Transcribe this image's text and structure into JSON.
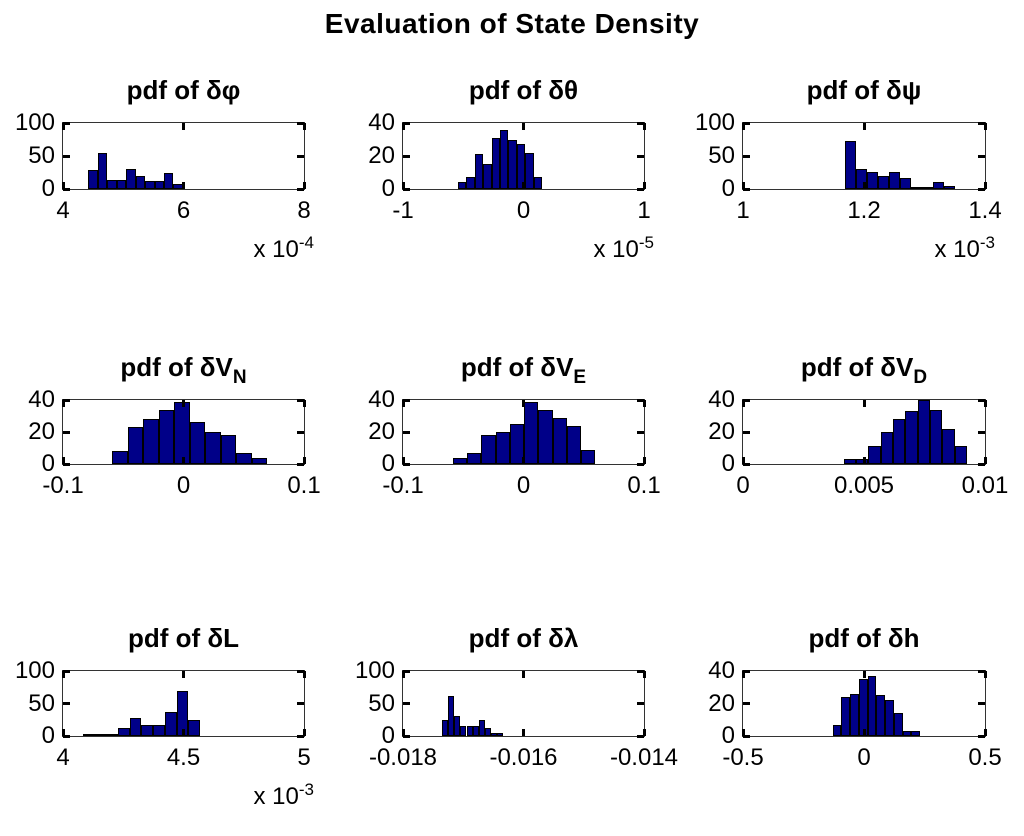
{
  "figure": {
    "title": "Evaluation of State Density"
  },
  "chart_data": [
    {
      "type": "histogram",
      "title": "pdf of δφ",
      "title_sub": "",
      "xlim": [
        4,
        8
      ],
      "ylim": [
        0,
        100
      ],
      "xticks": [
        "4",
        "6",
        "8"
      ],
      "yticks": [
        0,
        50,
        100
      ],
      "x_exp_base": "x 10",
      "x_exp_sup": "-4",
      "bin_start": 4.42,
      "bin_width": 0.157,
      "counts": [
        29,
        54,
        13,
        13,
        30,
        20,
        12,
        12,
        25,
        7
      ]
    },
    {
      "type": "histogram",
      "title": "pdf of δθ",
      "title_sub": "",
      "xlim": [
        -1,
        1
      ],
      "ylim": [
        0,
        40
      ],
      "xticks": [
        "-1",
        "0",
        "1"
      ],
      "yticks": [
        0,
        20,
        40
      ],
      "x_exp_base": "x 10",
      "x_exp_sup": "-5",
      "bin_start": -0.544,
      "bin_width": 0.0697,
      "counts": [
        4,
        7,
        21,
        15,
        31,
        36,
        30,
        27,
        22,
        7
      ]
    },
    {
      "type": "histogram",
      "title": "pdf of δψ",
      "title_sub": "",
      "xlim": [
        1,
        1.4
      ],
      "ylim": [
        0,
        100
      ],
      "xticks": [
        "1",
        "1.2",
        "1.4"
      ],
      "yticks": [
        0,
        50,
        100
      ],
      "x_exp_base": "x 10",
      "x_exp_sup": "-3",
      "bin_start": 1.168,
      "bin_width": 0.0183,
      "counts": [
        73,
        30,
        26,
        20,
        26,
        17,
        3,
        3,
        11,
        4
      ]
    },
    {
      "type": "histogram",
      "title": "pdf of δV",
      "title_sub": "N",
      "xlim": [
        -0.1,
        0.1
      ],
      "ylim": [
        0,
        40
      ],
      "xticks": [
        "-0.1",
        "0",
        "0.1"
      ],
      "yticks": [
        0,
        20,
        40
      ],
      "x_exp_base": "",
      "x_exp_sup": "",
      "bin_start": -0.0593,
      "bin_width": 0.01287,
      "counts": [
        8,
        23,
        28,
        34,
        39,
        26,
        20,
        18,
        7,
        4
      ]
    },
    {
      "type": "histogram",
      "title": "pdf of δV",
      "title_sub": "E",
      "xlim": [
        -0.1,
        0.1
      ],
      "ylim": [
        0,
        40
      ],
      "xticks": [
        "-0.1",
        "0",
        "0.1"
      ],
      "yticks": [
        0,
        20,
        40
      ],
      "x_exp_base": "",
      "x_exp_sup": "",
      "bin_start": -0.0585,
      "bin_width": 0.0118,
      "counts": [
        4,
        7,
        18,
        20,
        25,
        39,
        34,
        29,
        24,
        9
      ]
    },
    {
      "type": "histogram",
      "title": "pdf of δV",
      "title_sub": "D",
      "xlim": [
        0,
        0.01
      ],
      "ylim": [
        0,
        40
      ],
      "xticks": [
        "0",
        "0.005",
        "0.01"
      ],
      "yticks": [
        0,
        20,
        40
      ],
      "x_exp_base": "",
      "x_exp_sup": "",
      "bin_start": 0.00416,
      "bin_width": 0.00051,
      "counts": [
        3,
        3,
        11,
        20,
        28,
        33,
        40,
        34,
        22,
        11
      ]
    },
    {
      "type": "histogram",
      "title": "pdf of δL",
      "title_sub": "",
      "xlim": [
        4,
        5
      ],
      "ylim": [
        0,
        100
      ],
      "xticks": [
        "4",
        "4.5",
        "5"
      ],
      "yticks": [
        0,
        50,
        100
      ],
      "x_exp_base": "x 10",
      "x_exp_sup": "-3",
      "bin_start": 4.083,
      "bin_width": 0.0485,
      "counts": [
        3,
        3,
        3,
        13,
        28,
        17,
        17,
        37,
        69,
        24
      ]
    },
    {
      "type": "histogram",
      "title": "pdf of δλ",
      "title_sub": "",
      "xlim": [
        -0.018,
        -0.014
      ],
      "ylim": [
        0,
        100
      ],
      "xticks": [
        "-0.018",
        "-0.016",
        "-0.014"
      ],
      "yticks": [
        0,
        50,
        100
      ],
      "x_exp_base": "",
      "x_exp_sup": "",
      "bin_start": -0.01735,
      "bin_width": 0.000101,
      "counts": [
        24,
        62,
        31,
        16,
        16,
        16,
        24,
        12,
        4,
        4
      ]
    },
    {
      "type": "histogram",
      "title": "pdf of δh",
      "title_sub": "",
      "xlim": [
        -0.5,
        0.5
      ],
      "ylim": [
        0,
        40
      ],
      "xticks": [
        "-0.5",
        "0",
        "0.5"
      ],
      "yticks": [
        0,
        20,
        40
      ],
      "x_exp_base": "",
      "x_exp_sup": "",
      "bin_start": -0.13,
      "bin_width": 0.0362,
      "counts": [
        7,
        24,
        26,
        35,
        37,
        25,
        22,
        14,
        3,
        3
      ]
    }
  ],
  "style": {
    "bar_fill": "#000088",
    "bar_edge": "#000000",
    "axis_color": "#333333"
  }
}
